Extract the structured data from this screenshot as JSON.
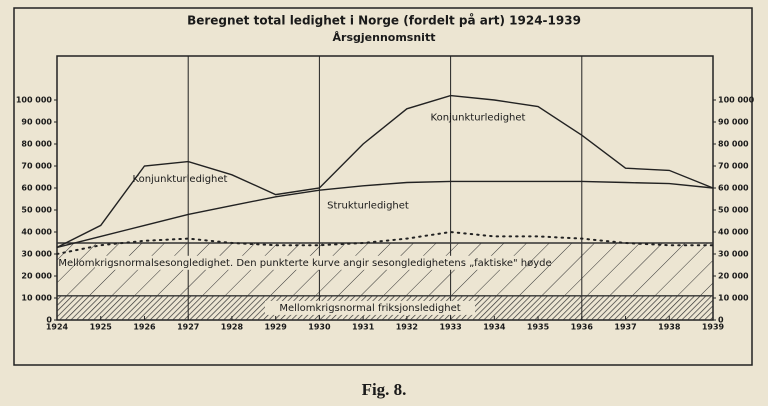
{
  "chart_data": {
    "type": "line",
    "title": "Beregnet total ledighet i Norge (fordelt på art) 1924-1939",
    "subtitle": "Årsgjennomsnitt",
    "caption": "Fig. 8.",
    "x": [
      1924,
      1925,
      1926,
      1927,
      1928,
      1929,
      1930,
      1931,
      1932,
      1933,
      1934,
      1935,
      1936,
      1937,
      1938,
      1939
    ],
    "xlim": [
      1924,
      1939
    ],
    "ylim": [
      0,
      120000
    ],
    "yticks": [
      0,
      {
        "value": 10000,
        "label": "10 000"
      },
      {
        "value": 20000,
        "label": "20 000"
      },
      {
        "value": 30000,
        "label": "30 000"
      },
      {
        "value": 40000,
        "label": "40 000"
      },
      {
        "value": 50000,
        "label": "50 000"
      },
      {
        "value": 60000,
        "label": "60 000"
      },
      {
        "value": 70000,
        "label": "70 000"
      },
      {
        "value": 80000,
        "label": "80 000"
      },
      {
        "value": 90000,
        "label": "90 000"
      },
      {
        "value": 100000,
        "label": "100 000"
      }
    ],
    "right_axis": true,
    "xgrid": [
      1927,
      1930,
      1933,
      1936
    ],
    "series": [
      {
        "name": "Mellomkrigsnormal friksjonsledighet",
        "style": "dense-hatch",
        "color": "#333333",
        "values": [
          11000,
          11000,
          11000,
          11000,
          11000,
          11000,
          11000,
          11000,
          11000,
          11000,
          11000,
          11000,
          11000,
          11000,
          11000,
          11000
        ]
      },
      {
        "name": "Mellomkrigsnormalsesongledighet. Den punkterte kurve angir sesongledighetens „faktiske\" høyde",
        "style": "hatch",
        "color": "#333333",
        "values": [
          35000,
          35000,
          35000,
          35000,
          35000,
          35000,
          35000,
          35000,
          35000,
          35000,
          35000,
          35000,
          35000,
          35000,
          35000,
          35000
        ]
      },
      {
        "style": "dotted",
        "color": "#222222",
        "values": [
          30000,
          34000,
          36000,
          37000,
          35000,
          34000,
          34000,
          35000,
          37000,
          40000,
          38000,
          38000,
          37000,
          35000,
          34000,
          34000
        ]
      },
      {
        "name": "Strukturledighet",
        "style": "solid",
        "color": "#222222",
        "values": [
          33000,
          38000,
          43000,
          48000,
          52000,
          56000,
          59000,
          61000,
          62500,
          63000,
          63000,
          63000,
          63000,
          62500,
          62000,
          60000
        ]
      },
      {
        "name": "Konjunkturledighet",
        "style": "solid",
        "color": "#222222",
        "values": [
          33000,
          43000,
          70000,
          72000,
          66000,
          57000,
          60000,
          80000,
          96000,
          102000,
          100000,
          97000,
          84000,
          69000,
          68000,
          60000
        ]
      }
    ]
  }
}
